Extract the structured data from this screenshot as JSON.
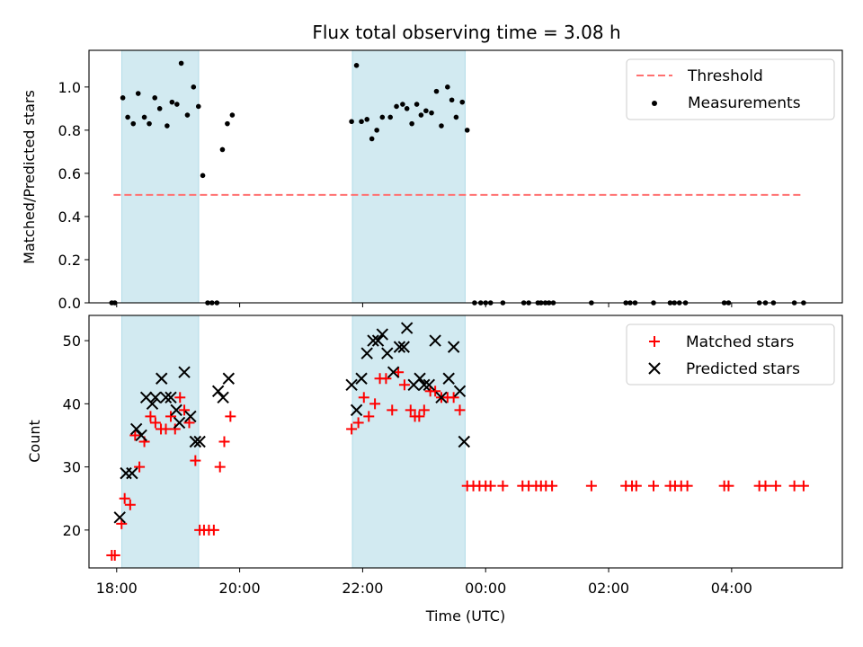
{
  "title": "Flux total observing time = 3.08 h",
  "colors": {
    "threshold": "#ff7070",
    "measurements": "#000000",
    "matched": "#ff0000",
    "predicted": "#000000",
    "shade": "#add8e6"
  },
  "chart_data": [
    {
      "type": "scatter",
      "panel": "top",
      "title": "Flux total observing time = 3.08 h",
      "xlabel": "",
      "ylabel": "Matched/Predicted stars",
      "xlim_hours": [
        17.55,
        29.8
      ],
      "ylim": [
        0,
        1.17
      ],
      "xticks": [
        "18:00",
        "20:00",
        "22:00",
        "00:00",
        "02:00",
        "04:00"
      ],
      "yticks": [
        "0.0",
        "0.2",
        "0.4",
        "0.6",
        "0.8",
        "1.0"
      ],
      "legend_position": "top-right",
      "shaded_intervals": [
        [
          "18:05",
          "19:20"
        ],
        [
          "21:50",
          "23:40"
        ]
      ],
      "series": [
        {
          "name": "Threshold",
          "style": "dashed-line",
          "points": [
            [
              "17.95",
              0.5
            ],
            [
              "29.15",
              0.5
            ]
          ]
        },
        {
          "name": "Measurements",
          "style": "dot",
          "points": [
            [
              "17.92",
              0.0
            ],
            [
              "17.97",
              0.0
            ],
            [
              "18.10",
              0.95
            ],
            [
              "18.18",
              0.86
            ],
            [
              "18.27",
              0.83
            ],
            [
              "18.35",
              0.97
            ],
            [
              "18.45",
              0.86
            ],
            [
              "18.53",
              0.83
            ],
            [
              "18.62",
              0.95
            ],
            [
              "18.70",
              0.9
            ],
            [
              "18.82",
              0.82
            ],
            [
              "18.90",
              0.93
            ],
            [
              "18.98",
              0.92
            ],
            [
              "19.05",
              1.11
            ],
            [
              "19.15",
              0.87
            ],
            [
              "19.25",
              1.0
            ],
            [
              "19.33",
              0.91
            ],
            [
              "19.40",
              0.59
            ],
            [
              "19.48",
              0.0
            ],
            [
              "19.55",
              0.0
            ],
            [
              "19.63",
              0.0
            ],
            [
              "19.72",
              0.71
            ],
            [
              "19.80",
              0.83
            ],
            [
              "19.88",
              0.87
            ],
            [
              "21.82",
              0.84
            ],
            [
              "21.90",
              1.1
            ],
            [
              "21.98",
              0.84
            ],
            [
              "22.07",
              0.85
            ],
            [
              "22.15",
              0.76
            ],
            [
              "22.23",
              0.8
            ],
            [
              "22.32",
              0.86
            ],
            [
              "22.45",
              0.86
            ],
            [
              "22.55",
              0.91
            ],
            [
              "22.65",
              0.92
            ],
            [
              "22.72",
              0.9
            ],
            [
              "22.80",
              0.83
            ],
            [
              "22.88",
              0.92
            ],
            [
              "22.95",
              0.87
            ],
            [
              "23.03",
              0.89
            ],
            [
              "23.12",
              0.88
            ],
            [
              "23.20",
              0.98
            ],
            [
              "23.28",
              0.82
            ],
            [
              "23.38",
              1.0
            ],
            [
              "23.45",
              0.94
            ],
            [
              "23.52",
              0.86
            ],
            [
              "23.62",
              0.93
            ],
            [
              "23.70",
              0.8
            ],
            [
              "23.82",
              0.0
            ],
            [
              "23.92",
              0.0
            ],
            [
              "24.00",
              0.0
            ],
            [
              "24.08",
              0.0
            ],
            [
              "24.28",
              0.0
            ],
            [
              "24.62",
              0.0
            ],
            [
              "24.70",
              0.0
            ],
            [
              "24.85",
              0.0
            ],
            [
              "24.90",
              0.0
            ],
            [
              "24.97",
              0.0
            ],
            [
              "25.03",
              0.0
            ],
            [
              "25.10",
              0.0
            ],
            [
              "25.72",
              0.0
            ],
            [
              "26.28",
              0.0
            ],
            [
              "26.35",
              0.0
            ],
            [
              "26.43",
              0.0
            ],
            [
              "26.73",
              0.0
            ],
            [
              "27.00",
              0.0
            ],
            [
              "27.07",
              0.0
            ],
            [
              "27.15",
              0.0
            ],
            [
              "27.25",
              0.0
            ],
            [
              "27.88",
              0.0
            ],
            [
              "27.95",
              0.0
            ],
            [
              "28.45",
              0.0
            ],
            [
              "28.55",
              0.0
            ],
            [
              "28.68",
              0.0
            ],
            [
              "29.02",
              0.0
            ],
            [
              "29.17",
              0.0
            ]
          ]
        }
      ]
    },
    {
      "type": "scatter",
      "panel": "bottom",
      "xlabel": "Time (UTC)",
      "ylabel": "Count",
      "xlim_hours": [
        17.55,
        29.8
      ],
      "ylim": [
        14,
        54
      ],
      "xticks": [
        "18:00",
        "20:00",
        "22:00",
        "00:00",
        "02:00",
        "04:00"
      ],
      "yticks": [
        "20",
        "30",
        "40",
        "50"
      ],
      "legend_position": "top-right",
      "shaded_intervals": [
        [
          "18:05",
          "19:20"
        ],
        [
          "21:50",
          "23:40"
        ]
      ],
      "series": [
        {
          "name": "Matched stars",
          "style": "plus",
          "points": [
            [
              "17.92",
              16
            ],
            [
              "17.97",
              16
            ],
            [
              "18.08",
              21
            ],
            [
              "18.13",
              25
            ],
            [
              "18.22",
              24
            ],
            [
              "18.30",
              35
            ],
            [
              "18.37",
              30
            ],
            [
              "18.45",
              34
            ],
            [
              "18.55",
              38
            ],
            [
              "18.63",
              37
            ],
            [
              "18.72",
              36
            ],
            [
              "18.80",
              36
            ],
            [
              "18.88",
              38
            ],
            [
              "18.95",
              36
            ],
            [
              "19.03",
              41
            ],
            [
              "19.10",
              39
            ],
            [
              "19.18",
              37
            ],
            [
              "19.28",
              31
            ],
            [
              "19.35",
              20
            ],
            [
              "19.42",
              20
            ],
            [
              "19.50",
              20
            ],
            [
              "19.58",
              20
            ],
            [
              "19.68",
              30
            ],
            [
              "19.75",
              34
            ],
            [
              "19.85",
              38
            ],
            [
              "21.82",
              36
            ],
            [
              "21.93",
              37
            ],
            [
              "22.02",
              41
            ],
            [
              "22.10",
              38
            ],
            [
              "22.20",
              40
            ],
            [
              "22.28",
              44
            ],
            [
              "22.38",
              44
            ],
            [
              "22.48",
              39
            ],
            [
              "22.58",
              45
            ],
            [
              "22.68",
              43
            ],
            [
              "22.78",
              39
            ],
            [
              "22.85",
              38
            ],
            [
              "22.92",
              38
            ],
            [
              "23.00",
              39
            ],
            [
              "23.10",
              42
            ],
            [
              "23.18",
              42
            ],
            [
              "23.28",
              41
            ],
            [
              "23.38",
              41
            ],
            [
              "23.48",
              41
            ],
            [
              "23.58",
              39
            ],
            [
              "23.70",
              27
            ],
            [
              "23.80",
              27
            ],
            [
              "23.90",
              27
            ],
            [
              "24.00",
              27
            ],
            [
              "24.08",
              27
            ],
            [
              "24.28",
              27
            ],
            [
              "24.60",
              27
            ],
            [
              "24.70",
              27
            ],
            [
              "24.82",
              27
            ],
            [
              "24.90",
              27
            ],
            [
              "24.98",
              27
            ],
            [
              "25.08",
              27
            ],
            [
              "25.72",
              27
            ],
            [
              "26.28",
              27
            ],
            [
              "26.38",
              27
            ],
            [
              "26.45",
              27
            ],
            [
              "26.73",
              27
            ],
            [
              "27.00",
              27
            ],
            [
              "27.08",
              27
            ],
            [
              "27.18",
              27
            ],
            [
              "27.28",
              27
            ],
            [
              "27.88",
              27
            ],
            [
              "27.95",
              27
            ],
            [
              "28.45",
              27
            ],
            [
              "28.55",
              27
            ],
            [
              "28.72",
              27
            ],
            [
              "29.02",
              27
            ],
            [
              "29.17",
              27
            ]
          ]
        },
        {
          "name": "Predicted stars",
          "style": "x",
          "points": [
            [
              "18.05",
              22
            ],
            [
              "18.15",
              29
            ],
            [
              "18.25",
              29
            ],
            [
              "18.32",
              36
            ],
            [
              "18.40",
              35
            ],
            [
              "18.48",
              41
            ],
            [
              "18.58",
              40
            ],
            [
              "18.63",
              41
            ],
            [
              "18.73",
              44
            ],
            [
              "18.80",
              41
            ],
            [
              "18.88",
              41
            ],
            [
              "18.97",
              39
            ],
            [
              "19.02",
              37
            ],
            [
              "19.10",
              45
            ],
            [
              "19.20",
              38
            ],
            [
              "19.28",
              34
            ],
            [
              "19.35",
              34
            ],
            [
              "19.65",
              42
            ],
            [
              "19.73",
              41
            ],
            [
              "19.82",
              44
            ],
            [
              "21.82",
              43
            ],
            [
              "21.90",
              39
            ],
            [
              "21.98",
              44
            ],
            [
              "22.07",
              48
            ],
            [
              "22.17",
              50
            ],
            [
              "22.25",
              50
            ],
            [
              "22.32",
              51
            ],
            [
              "22.40",
              48
            ],
            [
              "22.50",
              45
            ],
            [
              "22.60",
              49
            ],
            [
              "22.67",
              49
            ],
            [
              "22.72",
              52
            ],
            [
              "22.83",
              43
            ],
            [
              "22.93",
              44
            ],
            [
              "23.00",
              43
            ],
            [
              "23.08",
              43
            ],
            [
              "23.18",
              50
            ],
            [
              "23.28",
              41
            ],
            [
              "23.40",
              44
            ],
            [
              "23.48",
              49
            ],
            [
              "23.58",
              42
            ],
            [
              "23.65",
              34
            ]
          ]
        }
      ]
    }
  ]
}
